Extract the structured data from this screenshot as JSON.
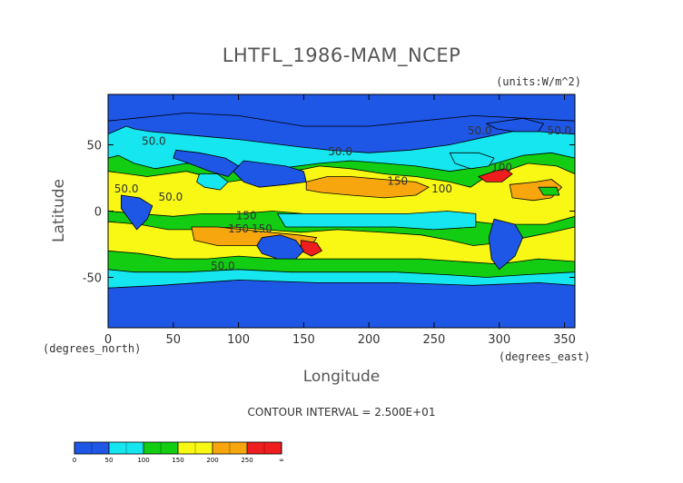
{
  "chart_data": {
    "type": "heatmap",
    "title": "LHTFL_1986-MAM_NCEP",
    "units_label": "(units:W/m^2)",
    "xlabel": "Longitude",
    "ylabel": "Latitude",
    "x_units_note": "(degrees_east)",
    "y_units_note": "(degrees_north)",
    "xlim": [
      0,
      358
    ],
    "ylim": [
      -88,
      88
    ],
    "x_ticks": [
      0,
      50,
      100,
      150,
      200,
      250,
      300,
      350
    ],
    "y_ticks": [
      -50,
      0,
      50
    ],
    "contour_interval_text": "CONTOUR INTERVAL = 2.500E+01",
    "levels": [
      0,
      50,
      100,
      150,
      200,
      250
    ],
    "colorbar": {
      "labels": [
        "0",
        "50",
        "100",
        "150",
        "200",
        "250",
        "∞"
      ],
      "colors": [
        "#1e56e6",
        "#1e56e6",
        "#16e6ef",
        "#16e6ef",
        "#12cd12",
        "#12cd12",
        "#f8f814",
        "#f8f814",
        "#f7a70d",
        "#f7a70d",
        "#ef1e1e",
        "#ef1e1e"
      ]
    },
    "contour_labels": [
      {
        "text": "50.0",
        "lon": 35,
        "lat": 50
      },
      {
        "text": "50.0",
        "lon": 14,
        "lat": 14
      },
      {
        "text": "50.0",
        "lon": 48,
        "lat": 8
      },
      {
        "text": "50.0",
        "lon": 88,
        "lat": -44
      },
      {
        "text": "50.0",
        "lon": 178,
        "lat": 42
      },
      {
        "text": "50.0",
        "lon": 285,
        "lat": 58
      },
      {
        "text": "50.0",
        "lon": 346,
        "lat": 58
      },
      {
        "text": "100",
        "lon": 302,
        "lat": 30
      },
      {
        "text": "150",
        "lon": 222,
        "lat": 20
      },
      {
        "text": "150",
        "lon": 106,
        "lat": -6
      },
      {
        "text": "150",
        "lon": 100,
        "lat": -16
      },
      {
        "text": "150",
        "lon": 118,
        "lat": -16
      },
      {
        "text": "100",
        "lon": 256,
        "lat": 14
      }
    ],
    "regions": [
      {
        "level": 50,
        "points": [
          [
            0,
            58
          ],
          [
            14,
            64
          ],
          [
            20,
            62
          ],
          [
            32,
            60
          ],
          [
            55,
            58
          ],
          [
            100,
            54
          ],
          [
            150,
            48
          ],
          [
            170,
            46
          ],
          [
            200,
            44
          ],
          [
            232,
            46
          ],
          [
            262,
            50
          ],
          [
            290,
            56
          ],
          [
            310,
            60
          ],
          [
            330,
            60
          ],
          [
            358,
            58
          ],
          [
            358,
            -64
          ],
          [
            0,
            -64
          ]
        ]
      },
      {
        "level": 100,
        "points": [
          [
            0,
            40
          ],
          [
            8,
            42
          ],
          [
            20,
            36
          ],
          [
            36,
            32
          ],
          [
            60,
            36
          ],
          [
            90,
            34
          ],
          [
            130,
            32
          ],
          [
            162,
            36
          ],
          [
            186,
            38
          ],
          [
            212,
            36
          ],
          [
            236,
            34
          ],
          [
            262,
            30
          ],
          [
            290,
            34
          ],
          [
            318,
            42
          ],
          [
            340,
            44
          ],
          [
            358,
            40
          ],
          [
            358,
            -46
          ],
          [
            320,
            -48
          ],
          [
            290,
            -50
          ],
          [
            260,
            -48
          ],
          [
            220,
            -46
          ],
          [
            180,
            -46
          ],
          [
            140,
            -46
          ],
          [
            100,
            -44
          ],
          [
            60,
            -46
          ],
          [
            20,
            -46
          ],
          [
            0,
            -44
          ]
        ]
      },
      {
        "level": 150,
        "points": [
          [
            0,
            30
          ],
          [
            30,
            26
          ],
          [
            60,
            30
          ],
          [
            92,
            22
          ],
          [
            122,
            26
          ],
          [
            142,
            30
          ],
          [
            162,
            34
          ],
          [
            186,
            32
          ],
          [
            212,
            28
          ],
          [
            236,
            26
          ],
          [
            262,
            22
          ],
          [
            278,
            18
          ],
          [
            290,
            26
          ],
          [
            304,
            30
          ],
          [
            322,
            36
          ],
          [
            344,
            34
          ],
          [
            358,
            28
          ],
          [
            358,
            -4
          ],
          [
            336,
            -10
          ],
          [
            300,
            -10
          ],
          [
            264,
            -6
          ],
          [
            236,
            -8
          ],
          [
            206,
            -6
          ],
          [
            180,
            -6
          ],
          [
            150,
            -2
          ],
          [
            126,
            0
          ],
          [
            100,
            -2
          ],
          [
            72,
            -2
          ],
          [
            50,
            -4
          ],
          [
            24,
            -2
          ],
          [
            0,
            0
          ]
        ]
      },
      {
        "level": 50,
        "points": [
          [
            130,
            -2
          ],
          [
            160,
            -2
          ],
          [
            190,
            -2
          ],
          [
            230,
            -2
          ],
          [
            260,
            0
          ],
          [
            282,
            -2
          ],
          [
            282,
            -12
          ],
          [
            250,
            -14
          ],
          [
            220,
            -12
          ],
          [
            190,
            -12
          ],
          [
            160,
            -12
          ],
          [
            136,
            -12
          ]
        ]
      },
      {
        "level": 150,
        "points": [
          [
            0,
            -8
          ],
          [
            24,
            -10
          ],
          [
            46,
            -14
          ],
          [
            72,
            -14
          ],
          [
            96,
            -12
          ],
          [
            120,
            -14
          ],
          [
            148,
            -16
          ],
          [
            176,
            -14
          ],
          [
            210,
            -16
          ],
          [
            240,
            -18
          ],
          [
            262,
            -22
          ],
          [
            280,
            -26
          ],
          [
            300,
            -24
          ],
          [
            320,
            -20
          ],
          [
            340,
            -16
          ],
          [
            358,
            -12
          ],
          [
            358,
            -38
          ],
          [
            330,
            -36
          ],
          [
            300,
            -40
          ],
          [
            270,
            -38
          ],
          [
            240,
            -36
          ],
          [
            210,
            -36
          ],
          [
            180,
            -36
          ],
          [
            160,
            -36
          ],
          [
            130,
            -36
          ],
          [
            100,
            -34
          ],
          [
            76,
            -36
          ],
          [
            50,
            -36
          ],
          [
            24,
            -32
          ],
          [
            0,
            -30
          ]
        ]
      },
      {
        "level": 200,
        "points": [
          [
            152,
            22
          ],
          [
            168,
            26
          ],
          [
            186,
            26
          ],
          [
            210,
            24
          ],
          [
            236,
            22
          ],
          [
            246,
            18
          ],
          [
            236,
            12
          ],
          [
            212,
            10
          ],
          [
            186,
            12
          ],
          [
            164,
            14
          ],
          [
            152,
            16
          ]
        ]
      },
      {
        "level": 200,
        "points": [
          [
            64,
            -12
          ],
          [
            84,
            -12
          ],
          [
            104,
            -14
          ],
          [
            124,
            -16
          ],
          [
            146,
            -18
          ],
          [
            160,
            -20
          ],
          [
            156,
            -26
          ],
          [
            132,
            -26
          ],
          [
            108,
            -26
          ],
          [
            84,
            -26
          ],
          [
            66,
            -22
          ]
        ]
      },
      {
        "level": 200,
        "points": [
          [
            308,
            20
          ],
          [
            328,
            22
          ],
          [
            340,
            24
          ],
          [
            348,
            18
          ],
          [
            340,
            10
          ],
          [
            326,
            8
          ],
          [
            310,
            10
          ]
        ]
      },
      {
        "level": 250,
        "points": [
          [
            284,
            26
          ],
          [
            296,
            30
          ],
          [
            304,
            32
          ],
          [
            310,
            28
          ],
          [
            302,
            22
          ],
          [
            290,
            22
          ]
        ]
      },
      {
        "level": 250,
        "points": [
          [
            148,
            -22
          ],
          [
            160,
            -24
          ],
          [
            164,
            -30
          ],
          [
            156,
            -34
          ],
          [
            148,
            -30
          ]
        ]
      },
      {
        "level": 100,
        "points": [
          [
            330,
            18
          ],
          [
            344,
            18
          ],
          [
            346,
            12
          ],
          [
            334,
            12
          ]
        ]
      },
      {
        "level": 0,
        "points": [
          [
            0,
            88
          ],
          [
            358,
            88
          ],
          [
            358,
            68
          ],
          [
            320,
            70
          ],
          [
            280,
            72
          ],
          [
            240,
            68
          ],
          [
            200,
            64
          ],
          [
            150,
            64
          ],
          [
            100,
            72
          ],
          [
            60,
            74
          ],
          [
            20,
            70
          ],
          [
            0,
            68
          ]
        ]
      },
      {
        "level": 0,
        "points": [
          [
            0,
            -58
          ],
          [
            40,
            -56
          ],
          [
            100,
            -52
          ],
          [
            160,
            -54
          ],
          [
            220,
            -54
          ],
          [
            280,
            -56
          ],
          [
            330,
            -54
          ],
          [
            358,
            -56
          ],
          [
            358,
            -88
          ],
          [
            0,
            -88
          ]
        ]
      },
      {
        "level": 0,
        "points": [
          [
            104,
            38
          ],
          [
            120,
            36
          ],
          [
            136,
            34
          ],
          [
            150,
            30
          ],
          [
            152,
            22
          ],
          [
            136,
            20
          ],
          [
            116,
            18
          ],
          [
            104,
            22
          ],
          [
            96,
            30
          ]
        ]
      },
      {
        "level": 0,
        "points": [
          [
            52,
            46
          ],
          [
            70,
            44
          ],
          [
            90,
            40
          ],
          [
            100,
            34
          ],
          [
            92,
            26
          ],
          [
            78,
            30
          ],
          [
            62,
            36
          ],
          [
            50,
            40
          ]
        ]
      },
      {
        "level": 0,
        "points": [
          [
            290,
            66
          ],
          [
            318,
            70
          ],
          [
            334,
            66
          ],
          [
            330,
            60
          ],
          [
            312,
            60
          ],
          [
            298,
            62
          ]
        ]
      },
      {
        "level": 0,
        "points": [
          [
            118,
            -20
          ],
          [
            132,
            -18
          ],
          [
            144,
            -22
          ],
          [
            150,
            -30
          ],
          [
            144,
            -36
          ],
          [
            130,
            -36
          ],
          [
            118,
            -32
          ],
          [
            114,
            -26
          ]
        ]
      },
      {
        "level": 50,
        "points": [
          [
            70,
            28
          ],
          [
            84,
            28
          ],
          [
            92,
            22
          ],
          [
            86,
            16
          ],
          [
            74,
            18
          ],
          [
            68,
            22
          ]
        ]
      },
      {
        "level": 0,
        "points": [
          [
            10,
            12
          ],
          [
            24,
            10
          ],
          [
            34,
            4
          ],
          [
            30,
            -6
          ],
          [
            22,
            -14
          ],
          [
            16,
            -6
          ],
          [
            10,
            2
          ]
        ]
      },
      {
        "level": 0,
        "points": [
          [
            296,
            -6
          ],
          [
            312,
            -10
          ],
          [
            318,
            -20
          ],
          [
            312,
            -34
          ],
          [
            300,
            -44
          ],
          [
            294,
            -36
          ],
          [
            292,
            -20
          ]
        ]
      },
      {
        "level": 50,
        "points": [
          [
            262,
            44
          ],
          [
            284,
            44
          ],
          [
            296,
            40
          ],
          [
            292,
            34
          ],
          [
            278,
            32
          ],
          [
            266,
            36
          ]
        ]
      }
    ]
  }
}
